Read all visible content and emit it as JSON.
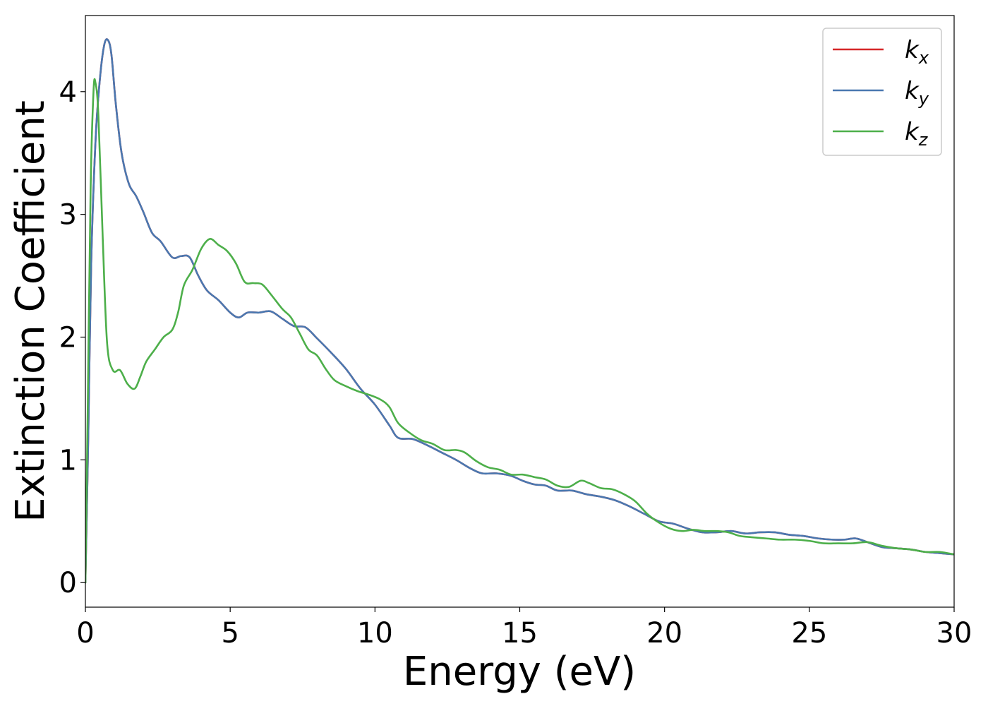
{
  "chart_data": {
    "type": "line",
    "xlabel": "Energy (eV)",
    "ylabel": "Extinction Coefficient",
    "xlim": [
      0,
      30
    ],
    "ylim": [
      -0.2,
      4.62
    ],
    "xticks": [
      0,
      5,
      10,
      15,
      20,
      25,
      30
    ],
    "yticks": [
      0,
      1,
      2,
      3,
      4
    ],
    "grid": false,
    "legend_position": "top-right",
    "legend": [
      {
        "base": "k",
        "sub": "x",
        "color": "#d62728"
      },
      {
        "base": "k",
        "sub": "y",
        "color": "#4a78b0"
      },
      {
        "base": "k",
        "sub": "z",
        "color": "#4daf4a"
      }
    ],
    "series": [
      {
        "name": "kx",
        "color": "#d62728",
        "points": [
          [
            0,
            0
          ],
          [
            0.1,
            1.2
          ],
          [
            0.2,
            2.6
          ],
          [
            0.35,
            3.6
          ],
          [
            0.5,
            4.1
          ],
          [
            0.65,
            4.38
          ],
          [
            0.78,
            4.42
          ],
          [
            0.9,
            4.3
          ],
          [
            1.05,
            3.9
          ],
          [
            1.25,
            3.5
          ],
          [
            1.5,
            3.25
          ],
          [
            1.75,
            3.15
          ],
          [
            2.0,
            3.02
          ],
          [
            2.3,
            2.85
          ],
          [
            2.6,
            2.78
          ],
          [
            3.0,
            2.65
          ],
          [
            3.3,
            2.66
          ],
          [
            3.6,
            2.65
          ],
          [
            3.9,
            2.5
          ],
          [
            4.2,
            2.38
          ],
          [
            4.6,
            2.3
          ],
          [
            5.0,
            2.2
          ],
          [
            5.3,
            2.16
          ],
          [
            5.6,
            2.2
          ],
          [
            6.0,
            2.2
          ],
          [
            6.4,
            2.21
          ],
          [
            6.8,
            2.15
          ],
          [
            7.2,
            2.09
          ],
          [
            7.6,
            2.08
          ],
          [
            8.0,
            1.99
          ],
          [
            8.5,
            1.87
          ],
          [
            9.0,
            1.74
          ],
          [
            9.5,
            1.58
          ],
          [
            10.0,
            1.45
          ],
          [
            10.5,
            1.28
          ],
          [
            10.8,
            1.18
          ],
          [
            11.3,
            1.17
          ],
          [
            11.8,
            1.12
          ],
          [
            12.3,
            1.06
          ],
          [
            12.8,
            1.0
          ],
          [
            13.3,
            0.93
          ],
          [
            13.7,
            0.89
          ],
          [
            14.2,
            0.89
          ],
          [
            14.7,
            0.87
          ],
          [
            15.1,
            0.83
          ],
          [
            15.5,
            0.8
          ],
          [
            15.9,
            0.79
          ],
          [
            16.3,
            0.75
          ],
          [
            16.8,
            0.75
          ],
          [
            17.3,
            0.72
          ],
          [
            17.8,
            0.7
          ],
          [
            18.3,
            0.67
          ],
          [
            18.8,
            0.62
          ],
          [
            19.3,
            0.56
          ],
          [
            19.8,
            0.5
          ],
          [
            20.3,
            0.48
          ],
          [
            20.8,
            0.44
          ],
          [
            21.3,
            0.41
          ],
          [
            21.8,
            0.41
          ],
          [
            22.3,
            0.42
          ],
          [
            22.8,
            0.4
          ],
          [
            23.3,
            0.41
          ],
          [
            23.8,
            0.41
          ],
          [
            24.3,
            0.39
          ],
          [
            24.8,
            0.38
          ],
          [
            25.3,
            0.36
          ],
          [
            25.8,
            0.35
          ],
          [
            26.2,
            0.35
          ],
          [
            26.6,
            0.36
          ],
          [
            27.0,
            0.33
          ],
          [
            27.5,
            0.29
          ],
          [
            28.0,
            0.28
          ],
          [
            28.5,
            0.27
          ],
          [
            29.0,
            0.25
          ],
          [
            29.5,
            0.24
          ],
          [
            30.0,
            0.23
          ]
        ]
      },
      {
        "name": "ky",
        "color": "#4a78b0",
        "points": [
          [
            0,
            0
          ],
          [
            0.1,
            1.2
          ],
          [
            0.2,
            2.6
          ],
          [
            0.35,
            3.6
          ],
          [
            0.5,
            4.1
          ],
          [
            0.65,
            4.38
          ],
          [
            0.78,
            4.42
          ],
          [
            0.9,
            4.3
          ],
          [
            1.05,
            3.9
          ],
          [
            1.25,
            3.5
          ],
          [
            1.5,
            3.25
          ],
          [
            1.75,
            3.15
          ],
          [
            2.0,
            3.02
          ],
          [
            2.3,
            2.85
          ],
          [
            2.6,
            2.78
          ],
          [
            3.0,
            2.65
          ],
          [
            3.3,
            2.66
          ],
          [
            3.6,
            2.65
          ],
          [
            3.9,
            2.5
          ],
          [
            4.2,
            2.38
          ],
          [
            4.6,
            2.3
          ],
          [
            5.0,
            2.2
          ],
          [
            5.3,
            2.16
          ],
          [
            5.6,
            2.2
          ],
          [
            6.0,
            2.2
          ],
          [
            6.4,
            2.21
          ],
          [
            6.8,
            2.15
          ],
          [
            7.2,
            2.09
          ],
          [
            7.6,
            2.08
          ],
          [
            8.0,
            1.99
          ],
          [
            8.5,
            1.87
          ],
          [
            9.0,
            1.74
          ],
          [
            9.5,
            1.58
          ],
          [
            10.0,
            1.45
          ],
          [
            10.5,
            1.28
          ],
          [
            10.8,
            1.18
          ],
          [
            11.3,
            1.17
          ],
          [
            11.8,
            1.12
          ],
          [
            12.3,
            1.06
          ],
          [
            12.8,
            1.0
          ],
          [
            13.3,
            0.93
          ],
          [
            13.7,
            0.89
          ],
          [
            14.2,
            0.89
          ],
          [
            14.7,
            0.87
          ],
          [
            15.1,
            0.83
          ],
          [
            15.5,
            0.8
          ],
          [
            15.9,
            0.79
          ],
          [
            16.3,
            0.75
          ],
          [
            16.8,
            0.75
          ],
          [
            17.3,
            0.72
          ],
          [
            17.8,
            0.7
          ],
          [
            18.3,
            0.67
          ],
          [
            18.8,
            0.62
          ],
          [
            19.3,
            0.56
          ],
          [
            19.8,
            0.5
          ],
          [
            20.3,
            0.48
          ],
          [
            20.8,
            0.44
          ],
          [
            21.3,
            0.41
          ],
          [
            21.8,
            0.41
          ],
          [
            22.3,
            0.42
          ],
          [
            22.8,
            0.4
          ],
          [
            23.3,
            0.41
          ],
          [
            23.8,
            0.41
          ],
          [
            24.3,
            0.39
          ],
          [
            24.8,
            0.38
          ],
          [
            25.3,
            0.36
          ],
          [
            25.8,
            0.35
          ],
          [
            26.2,
            0.35
          ],
          [
            26.6,
            0.36
          ],
          [
            27.0,
            0.33
          ],
          [
            27.5,
            0.29
          ],
          [
            28.0,
            0.28
          ],
          [
            28.5,
            0.27
          ],
          [
            29.0,
            0.25
          ],
          [
            29.5,
            0.24
          ],
          [
            30.0,
            0.23
          ]
        ]
      },
      {
        "name": "kz",
        "color": "#4daf4a",
        "points": [
          [
            0,
            0
          ],
          [
            0.08,
            1.4
          ],
          [
            0.18,
            3.2
          ],
          [
            0.28,
            4.0
          ],
          [
            0.35,
            4.07
          ],
          [
            0.45,
            3.8
          ],
          [
            0.6,
            2.8
          ],
          [
            0.75,
            1.95
          ],
          [
            0.95,
            1.73
          ],
          [
            1.2,
            1.73
          ],
          [
            1.45,
            1.62
          ],
          [
            1.7,
            1.58
          ],
          [
            1.9,
            1.68
          ],
          [
            2.1,
            1.8
          ],
          [
            2.4,
            1.9
          ],
          [
            2.7,
            2.0
          ],
          [
            3.0,
            2.06
          ],
          [
            3.2,
            2.2
          ],
          [
            3.4,
            2.42
          ],
          [
            3.7,
            2.55
          ],
          [
            4.0,
            2.72
          ],
          [
            4.3,
            2.8
          ],
          [
            4.6,
            2.75
          ],
          [
            4.9,
            2.7
          ],
          [
            5.2,
            2.6
          ],
          [
            5.5,
            2.45
          ],
          [
            5.8,
            2.44
          ],
          [
            6.1,
            2.43
          ],
          [
            6.4,
            2.35
          ],
          [
            6.8,
            2.23
          ],
          [
            7.1,
            2.16
          ],
          [
            7.4,
            2.03
          ],
          [
            7.7,
            1.9
          ],
          [
            8.0,
            1.85
          ],
          [
            8.3,
            1.74
          ],
          [
            8.6,
            1.65
          ],
          [
            9.0,
            1.6
          ],
          [
            9.4,
            1.56
          ],
          [
            9.8,
            1.53
          ],
          [
            10.2,
            1.49
          ],
          [
            10.5,
            1.43
          ],
          [
            10.8,
            1.3
          ],
          [
            11.2,
            1.22
          ],
          [
            11.6,
            1.16
          ],
          [
            12.0,
            1.13
          ],
          [
            12.4,
            1.08
          ],
          [
            12.8,
            1.08
          ],
          [
            13.1,
            1.06
          ],
          [
            13.5,
            0.99
          ],
          [
            13.9,
            0.94
          ],
          [
            14.3,
            0.92
          ],
          [
            14.7,
            0.88
          ],
          [
            15.1,
            0.88
          ],
          [
            15.5,
            0.86
          ],
          [
            15.9,
            0.84
          ],
          [
            16.3,
            0.79
          ],
          [
            16.7,
            0.78
          ],
          [
            17.1,
            0.83
          ],
          [
            17.4,
            0.81
          ],
          [
            17.8,
            0.77
          ],
          [
            18.2,
            0.76
          ],
          [
            18.6,
            0.72
          ],
          [
            19.0,
            0.66
          ],
          [
            19.4,
            0.56
          ],
          [
            19.8,
            0.49
          ],
          [
            20.2,
            0.44
          ],
          [
            20.6,
            0.42
          ],
          [
            21.0,
            0.43
          ],
          [
            21.4,
            0.42
          ],
          [
            21.8,
            0.42
          ],
          [
            22.2,
            0.41
          ],
          [
            22.6,
            0.38
          ],
          [
            23.0,
            0.37
          ],
          [
            23.5,
            0.36
          ],
          [
            24.0,
            0.35
          ],
          [
            24.5,
            0.35
          ],
          [
            25.0,
            0.34
          ],
          [
            25.5,
            0.32
          ],
          [
            26.0,
            0.32
          ],
          [
            26.5,
            0.32
          ],
          [
            27.0,
            0.33
          ],
          [
            27.5,
            0.3
          ],
          [
            28.0,
            0.28
          ],
          [
            28.5,
            0.27
          ],
          [
            29.0,
            0.25
          ],
          [
            29.5,
            0.25
          ],
          [
            30.0,
            0.23
          ]
        ]
      }
    ]
  }
}
